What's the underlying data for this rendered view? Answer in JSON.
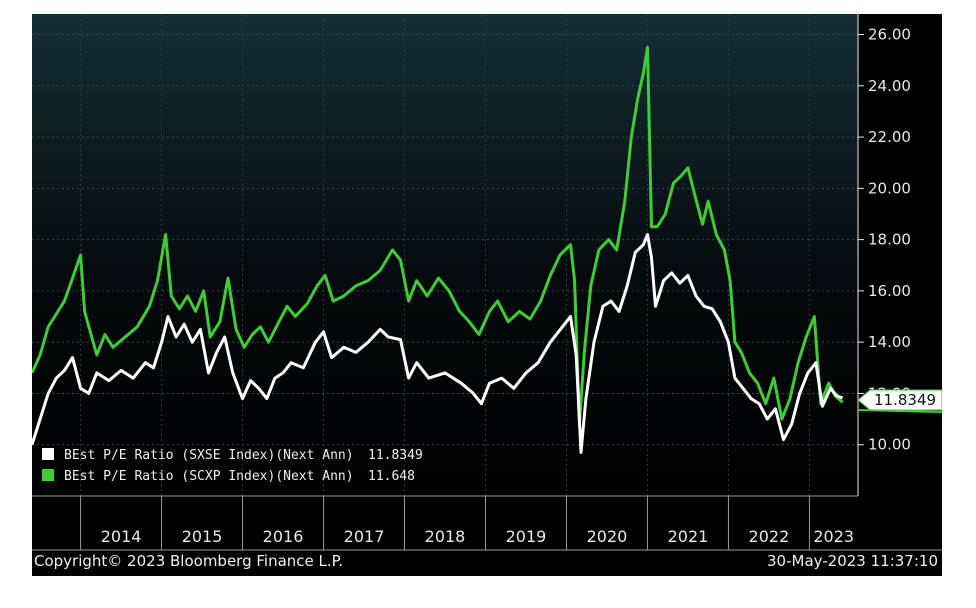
{
  "chart_data": {
    "type": "line",
    "ylim": [
      8,
      26.8
    ],
    "y_ticks": [
      "26.00",
      "24.00",
      "22.00",
      "20.00",
      "18.00",
      "16.00",
      "14.00",
      "12.00",
      "10.00"
    ],
    "x_years": [
      "2014",
      "2015",
      "2016",
      "2017",
      "2018",
      "2019",
      "2020",
      "2021",
      "2022",
      "2023"
    ],
    "x_range": [
      2013.4,
      2023.6
    ],
    "grid": true,
    "series": [
      {
        "name": "BEst P/E Ratio (SXSE Index)(Next Ann)",
        "last": "11.8349",
        "color": "#ffffff",
        "points": [
          [
            2013.4,
            10.0
          ],
          [
            2013.5,
            11.0
          ],
          [
            2013.6,
            12.0
          ],
          [
            2013.7,
            12.6
          ],
          [
            2013.8,
            12.9
          ],
          [
            2013.9,
            13.4
          ],
          [
            2014.0,
            12.2
          ],
          [
            2014.1,
            12.0
          ],
          [
            2014.2,
            12.8
          ],
          [
            2014.35,
            12.5
          ],
          [
            2014.5,
            12.9
          ],
          [
            2014.65,
            12.6
          ],
          [
            2014.8,
            13.2
          ],
          [
            2014.9,
            13.0
          ],
          [
            2015.0,
            14.0
          ],
          [
            2015.08,
            15.0
          ],
          [
            2015.18,
            14.2
          ],
          [
            2015.28,
            14.7
          ],
          [
            2015.38,
            14.0
          ],
          [
            2015.48,
            14.5
          ],
          [
            2015.58,
            12.8
          ],
          [
            2015.68,
            13.6
          ],
          [
            2015.78,
            14.2
          ],
          [
            2015.88,
            12.8
          ],
          [
            2016.0,
            11.8
          ],
          [
            2016.1,
            12.5
          ],
          [
            2016.2,
            12.2
          ],
          [
            2016.3,
            11.8
          ],
          [
            2016.4,
            12.6
          ],
          [
            2016.5,
            12.8
          ],
          [
            2016.6,
            13.2
          ],
          [
            2016.75,
            13.0
          ],
          [
            2016.9,
            14.0
          ],
          [
            2017.0,
            14.4
          ],
          [
            2017.1,
            13.4
          ],
          [
            2017.25,
            13.8
          ],
          [
            2017.4,
            13.6
          ],
          [
            2017.55,
            14.0
          ],
          [
            2017.7,
            14.5
          ],
          [
            2017.8,
            14.2
          ],
          [
            2017.95,
            14.1
          ],
          [
            2018.05,
            12.6
          ],
          [
            2018.15,
            13.2
          ],
          [
            2018.3,
            12.6
          ],
          [
            2018.5,
            12.8
          ],
          [
            2018.7,
            12.4
          ],
          [
            2018.85,
            12.0
          ],
          [
            2018.95,
            11.6
          ],
          [
            2019.05,
            12.4
          ],
          [
            2019.2,
            12.6
          ],
          [
            2019.35,
            12.2
          ],
          [
            2019.5,
            12.8
          ],
          [
            2019.65,
            13.2
          ],
          [
            2019.8,
            14.0
          ],
          [
            2019.95,
            14.6
          ],
          [
            2020.05,
            15.0
          ],
          [
            2020.12,
            13.5
          ],
          [
            2020.18,
            9.7
          ],
          [
            2020.24,
            11.8
          ],
          [
            2020.34,
            14.0
          ],
          [
            2020.45,
            15.4
          ],
          [
            2020.55,
            15.6
          ],
          [
            2020.65,
            15.2
          ],
          [
            2020.75,
            16.2
          ],
          [
            2020.85,
            17.5
          ],
          [
            2020.95,
            17.8
          ],
          [
            2021.0,
            18.2
          ],
          [
            2021.05,
            17.3
          ],
          [
            2021.1,
            15.4
          ],
          [
            2021.2,
            16.4
          ],
          [
            2021.3,
            16.7
          ],
          [
            2021.4,
            16.3
          ],
          [
            2021.5,
            16.6
          ],
          [
            2021.6,
            15.8
          ],
          [
            2021.7,
            15.4
          ],
          [
            2021.8,
            15.3
          ],
          [
            2021.9,
            14.8
          ],
          [
            2022.0,
            14.0
          ],
          [
            2022.08,
            12.6
          ],
          [
            2022.18,
            12.2
          ],
          [
            2022.28,
            11.8
          ],
          [
            2022.38,
            11.6
          ],
          [
            2022.48,
            11.0
          ],
          [
            2022.58,
            11.4
          ],
          [
            2022.68,
            10.2
          ],
          [
            2022.78,
            10.8
          ],
          [
            2022.88,
            12.0
          ],
          [
            2022.98,
            12.8
          ],
          [
            2023.08,
            13.2
          ],
          [
            2023.16,
            11.5
          ],
          [
            2023.26,
            12.2
          ],
          [
            2023.34,
            11.9
          ],
          [
            2023.41,
            11.83
          ]
        ]
      },
      {
        "name": "BEst P/E Ratio (SCXP Index)(Next Ann)",
        "last": "11.648",
        "color": "#3fcc35",
        "points": [
          [
            2013.4,
            12.8
          ],
          [
            2013.5,
            13.5
          ],
          [
            2013.6,
            14.6
          ],
          [
            2013.7,
            15.1
          ],
          [
            2013.8,
            15.6
          ],
          [
            2013.9,
            16.5
          ],
          [
            2014.0,
            17.4
          ],
          [
            2014.05,
            15.2
          ],
          [
            2014.12,
            14.4
          ],
          [
            2014.2,
            13.5
          ],
          [
            2014.3,
            14.3
          ],
          [
            2014.4,
            13.8
          ],
          [
            2014.55,
            14.2
          ],
          [
            2014.7,
            14.6
          ],
          [
            2014.85,
            15.4
          ],
          [
            2014.95,
            16.4
          ],
          [
            2015.05,
            18.2
          ],
          [
            2015.12,
            15.8
          ],
          [
            2015.22,
            15.3
          ],
          [
            2015.32,
            15.8
          ],
          [
            2015.42,
            15.2
          ],
          [
            2015.52,
            16.0
          ],
          [
            2015.6,
            14.2
          ],
          [
            2015.72,
            14.8
          ],
          [
            2015.82,
            16.5
          ],
          [
            2015.92,
            14.5
          ],
          [
            2016.02,
            13.8
          ],
          [
            2016.12,
            14.3
          ],
          [
            2016.22,
            14.6
          ],
          [
            2016.32,
            14.0
          ],
          [
            2016.45,
            14.8
          ],
          [
            2016.55,
            15.4
          ],
          [
            2016.65,
            15.0
          ],
          [
            2016.8,
            15.5
          ],
          [
            2016.92,
            16.2
          ],
          [
            2017.02,
            16.6
          ],
          [
            2017.12,
            15.6
          ],
          [
            2017.25,
            15.8
          ],
          [
            2017.4,
            16.2
          ],
          [
            2017.55,
            16.4
          ],
          [
            2017.7,
            16.8
          ],
          [
            2017.85,
            17.6
          ],
          [
            2017.95,
            17.2
          ],
          [
            2018.05,
            15.6
          ],
          [
            2018.15,
            16.4
          ],
          [
            2018.28,
            15.8
          ],
          [
            2018.42,
            16.5
          ],
          [
            2018.55,
            16.0
          ],
          [
            2018.68,
            15.2
          ],
          [
            2018.8,
            14.8
          ],
          [
            2018.92,
            14.3
          ],
          [
            2019.05,
            15.2
          ],
          [
            2019.15,
            15.6
          ],
          [
            2019.28,
            14.8
          ],
          [
            2019.42,
            15.2
          ],
          [
            2019.55,
            14.9
          ],
          [
            2019.68,
            15.6
          ],
          [
            2019.8,
            16.6
          ],
          [
            2019.92,
            17.4
          ],
          [
            2020.05,
            17.8
          ],
          [
            2020.1,
            16.4
          ],
          [
            2020.16,
            10.8
          ],
          [
            2020.22,
            13.6
          ],
          [
            2020.3,
            16.2
          ],
          [
            2020.4,
            17.6
          ],
          [
            2020.52,
            18.0
          ],
          [
            2020.62,
            17.6
          ],
          [
            2020.72,
            19.5
          ],
          [
            2020.8,
            22.0
          ],
          [
            2020.88,
            23.5
          ],
          [
            2020.95,
            24.5
          ],
          [
            2021.0,
            25.5
          ],
          [
            2021.05,
            18.5
          ],
          [
            2021.12,
            18.5
          ],
          [
            2021.22,
            19.0
          ],
          [
            2021.32,
            20.2
          ],
          [
            2021.42,
            20.5
          ],
          [
            2021.5,
            20.8
          ],
          [
            2021.58,
            19.8
          ],
          [
            2021.68,
            18.6
          ],
          [
            2021.75,
            19.5
          ],
          [
            2021.85,
            18.2
          ],
          [
            2021.95,
            17.6
          ],
          [
            2022.02,
            16.4
          ],
          [
            2022.08,
            14.0
          ],
          [
            2022.16,
            13.6
          ],
          [
            2022.26,
            12.8
          ],
          [
            2022.36,
            12.4
          ],
          [
            2022.46,
            11.6
          ],
          [
            2022.56,
            12.6
          ],
          [
            2022.66,
            11.0
          ],
          [
            2022.76,
            11.8
          ],
          [
            2022.86,
            13.2
          ],
          [
            2022.96,
            14.2
          ],
          [
            2023.06,
            15.0
          ],
          [
            2023.14,
            11.6
          ],
          [
            2023.24,
            12.4
          ],
          [
            2023.32,
            11.9
          ],
          [
            2023.41,
            11.65
          ]
        ]
      }
    ],
    "last_value_label": "11.8349",
    "legend": {
      "placement": "bottom-left"
    },
    "footer_left": "Copyright© 2023 Bloomberg Finance L.P.",
    "footer_right": "30-May-2023 11:37:10"
  }
}
